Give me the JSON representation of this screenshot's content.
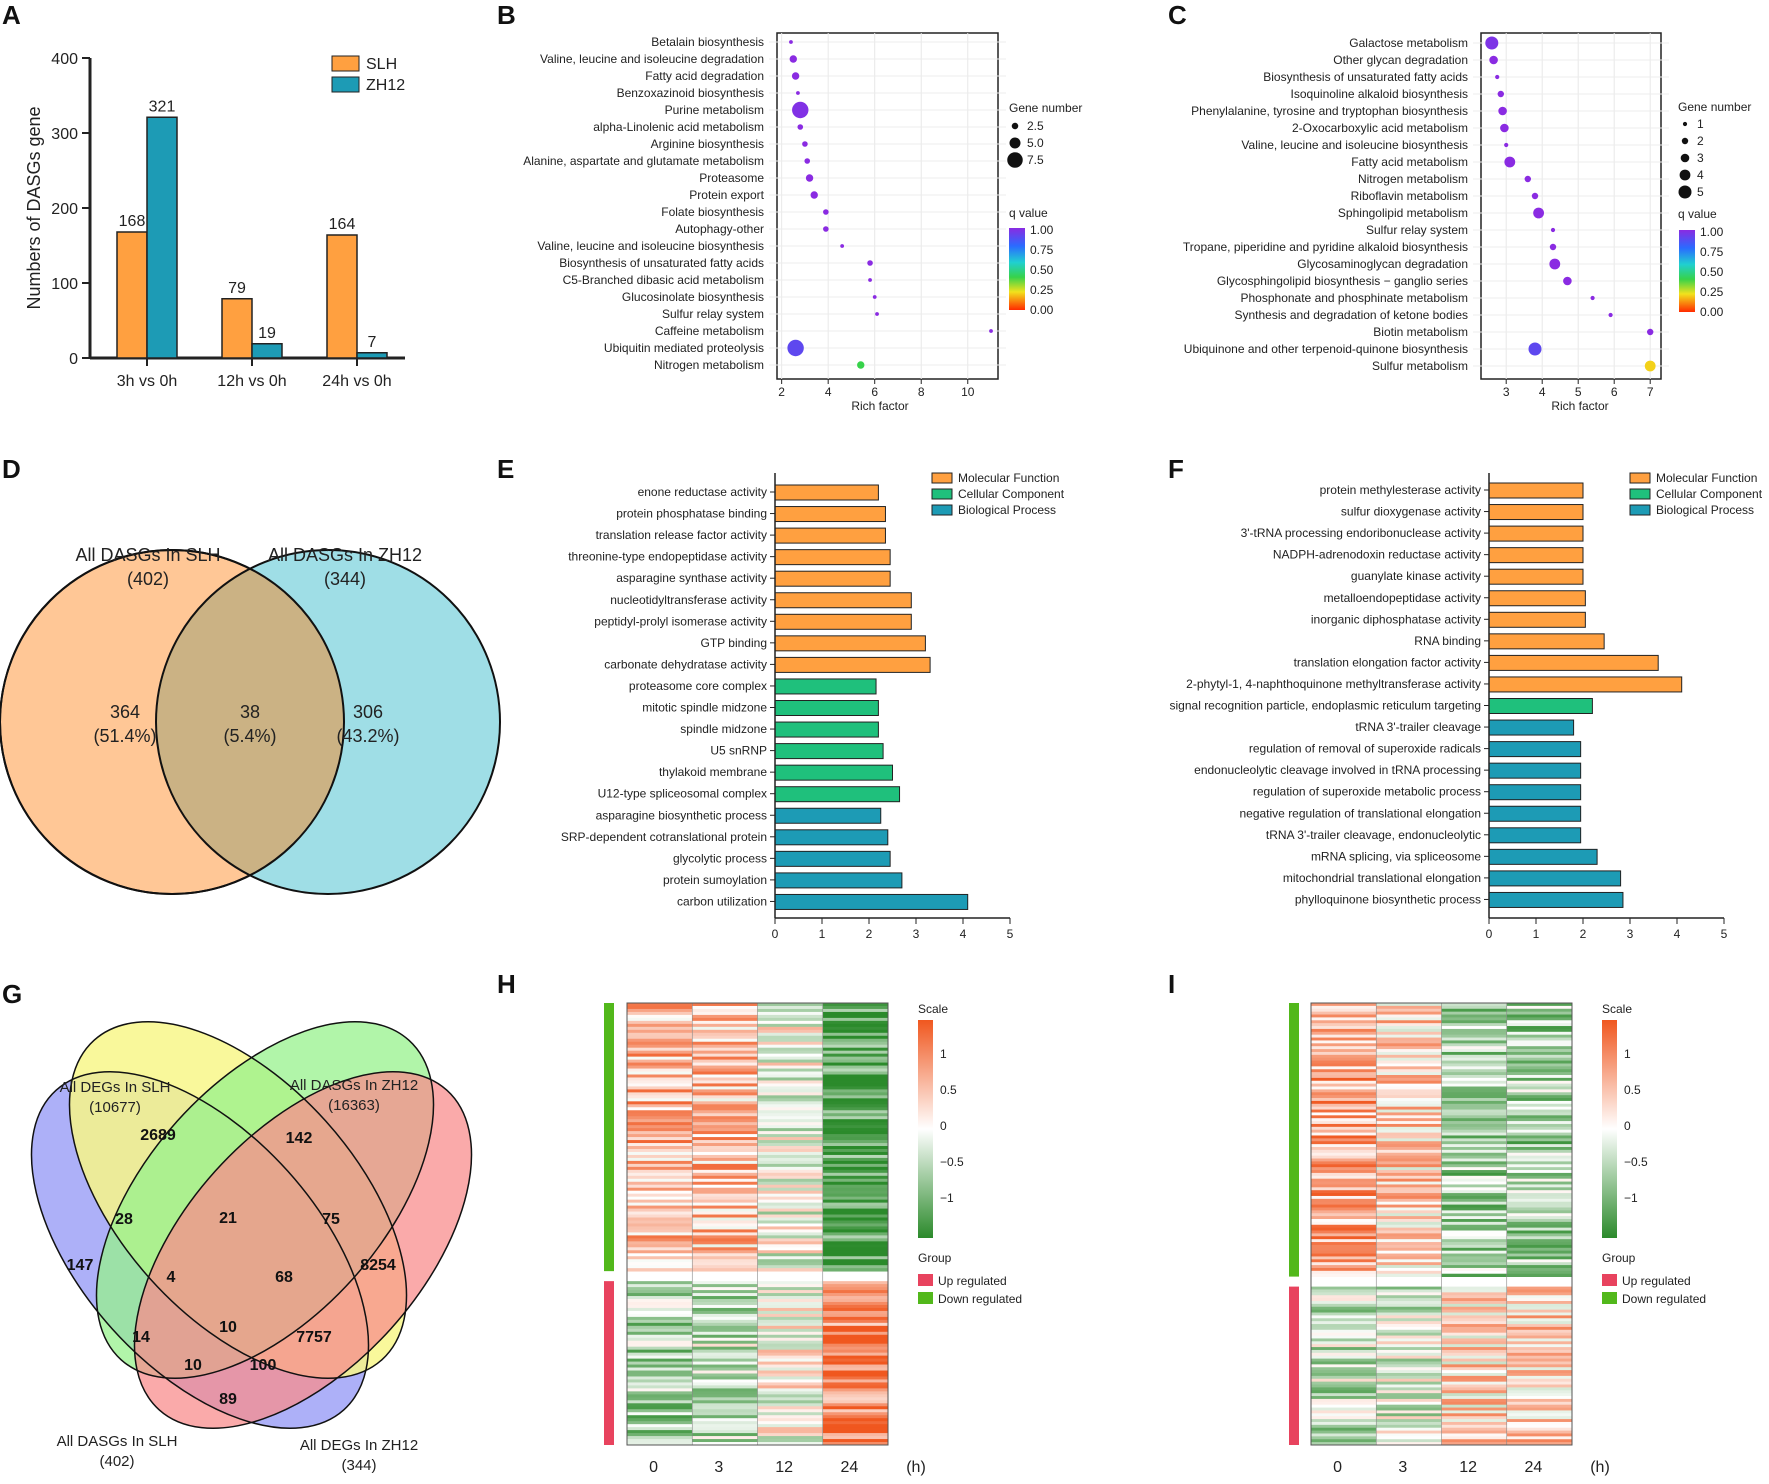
{
  "panels": {
    "A": "A",
    "B": "B",
    "C": "C",
    "D": "D",
    "E": "E",
    "F": "F",
    "G": "G",
    "H": "H",
    "I": "I"
  },
  "chart_data": [
    {
      "id": "A",
      "type": "bar",
      "ylabel": "Numbers of DASGs gene",
      "ylim": [
        0,
        400
      ],
      "yticks": [
        "0",
        "100",
        "200",
        "300",
        "400"
      ],
      "categories": [
        "3h vs 0h",
        "12h vs 0h",
        "24h vs 0h"
      ],
      "series": [
        {
          "name": "SLH",
          "values": [
            168,
            79,
            164
          ],
          "color": "#FFA040"
        },
        {
          "name": "ZH12",
          "values": [
            321,
            19,
            7
          ],
          "color": "#1D9BB5"
        }
      ],
      "data_labels": [
        [
          "168",
          "321"
        ],
        [
          "79",
          "19"
        ],
        [
          "164",
          "7"
        ]
      ]
    },
    {
      "id": "B",
      "type": "scatter",
      "xlabel": "Rich factor",
      "xlim": [
        1.8,
        11.3
      ],
      "xticks": [
        "2",
        "4",
        "6",
        "8",
        "10"
      ],
      "size_legend_title": "Gene number",
      "size_legend": [
        "2.5",
        "5.0",
        "7.5"
      ],
      "q_legend_title": "q value",
      "q_legend": [
        "1.00",
        "0.75",
        "0.50",
        "0.25",
        "0.00"
      ],
      "terms": [
        {
          "label": "Betalain biosynthesis",
          "rich": 2.4,
          "genes": 1,
          "q": 1.0
        },
        {
          "label": "Valine, leucine and isoleucine degradation",
          "rich": 2.5,
          "genes": 3,
          "q": 1.0
        },
        {
          "label": "Fatty acid degradation",
          "rich": 2.6,
          "genes": 3,
          "q": 1.0
        },
        {
          "label": "Benzoxazinoid biosynthesis",
          "rich": 2.7,
          "genes": 1,
          "q": 1.0
        },
        {
          "label": "Purine metabolism",
          "rich": 2.8,
          "genes": 8,
          "q": 0.98
        },
        {
          "label": "alpha-Linolenic acid metabolism",
          "rich": 2.8,
          "genes": 2,
          "q": 1.0
        },
        {
          "label": "Arginine biosynthesis",
          "rich": 3.0,
          "genes": 2,
          "q": 1.0
        },
        {
          "label": "Alanine, aspartate and glutamate metabolism",
          "rich": 3.1,
          "genes": 2,
          "q": 1.0
        },
        {
          "label": "Proteasome",
          "rich": 3.2,
          "genes": 3,
          "q": 1.0
        },
        {
          "label": "Protein export",
          "rich": 3.4,
          "genes": 3,
          "q": 1.0
        },
        {
          "label": "Folate biosynthesis",
          "rich": 3.9,
          "genes": 2,
          "q": 1.0
        },
        {
          "label": "Autophagy-other",
          "rich": 3.9,
          "genes": 2,
          "q": 1.0
        },
        {
          "label": "Valine, leucine and isoleucine biosynthesis",
          "rich": 4.6,
          "genes": 1,
          "q": 1.0
        },
        {
          "label": "Biosynthesis of unsaturated fatty acids",
          "rich": 5.8,
          "genes": 2,
          "q": 1.0
        },
        {
          "label": "C5-Branched dibasic acid metabolism",
          "rich": 5.8,
          "genes": 1,
          "q": 1.0
        },
        {
          "label": "Glucosinolate biosynthesis",
          "rich": 6.0,
          "genes": 1,
          "q": 1.0
        },
        {
          "label": "Sulfur relay system",
          "rich": 6.1,
          "genes": 1,
          "q": 1.0
        },
        {
          "label": "Caffeine metabolism",
          "rich": 11.0,
          "genes": 1,
          "q": 1.0
        },
        {
          "label": "Ubiquitin mediated proteolysis",
          "rich": 2.6,
          "genes": 8,
          "q": 0.9
        },
        {
          "label": "Nitrogen metabolism",
          "rich": 5.4,
          "genes": 3,
          "q": 0.4
        }
      ]
    },
    {
      "id": "C",
      "type": "scatter",
      "xlabel": "Rich factor",
      "xlim": [
        2.3,
        7.3
      ],
      "xticks": [
        "3",
        "4",
        "5",
        "6",
        "7"
      ],
      "size_legend_title": "Gene number",
      "size_legend": [
        "1",
        "2",
        "3",
        "4",
        "5"
      ],
      "q_legend_title": "q value",
      "q_legend": [
        "1.00",
        "0.75",
        "0.50",
        "0.25",
        "0.00"
      ],
      "terms": [
        {
          "label": "Galactose metabolism",
          "rich": 2.6,
          "genes": 5,
          "q": 0.97
        },
        {
          "label": "Other glycan degradation",
          "rich": 2.65,
          "genes": 3,
          "q": 1.0
        },
        {
          "label": "Biosynthesis of unsaturated fatty acids",
          "rich": 2.75,
          "genes": 1,
          "q": 1.0
        },
        {
          "label": "Isoquinoline alkaloid biosynthesis",
          "rich": 2.85,
          "genes": 2,
          "q": 1.0
        },
        {
          "label": "Phenylalanine, tyrosine and tryptophan biosynthesis",
          "rich": 2.9,
          "genes": 3,
          "q": 1.0
        },
        {
          "label": "2-Oxocarboxylic acid metabolism",
          "rich": 2.95,
          "genes": 3,
          "q": 1.0
        },
        {
          "label": "Valine, leucine and isoleucine biosynthesis",
          "rich": 3.0,
          "genes": 1,
          "q": 1.0
        },
        {
          "label": "Fatty acid metabolism",
          "rich": 3.1,
          "genes": 4,
          "q": 1.0
        },
        {
          "label": "Nitrogen metabolism",
          "rich": 3.6,
          "genes": 2,
          "q": 1.0
        },
        {
          "label": "Riboflavin metabolism",
          "rich": 3.8,
          "genes": 2,
          "q": 1.0
        },
        {
          "label": "Sphingolipid metabolism",
          "rich": 3.9,
          "genes": 4,
          "q": 1.0
        },
        {
          "label": "Sulfur relay system",
          "rich": 4.3,
          "genes": 1,
          "q": 1.0
        },
        {
          "label": "Tropane, piperidine and pyridine alkaloid biosynthesis",
          "rich": 4.3,
          "genes": 2,
          "q": 1.0
        },
        {
          "label": "Glycosaminoglycan degradation",
          "rich": 4.35,
          "genes": 4,
          "q": 1.0
        },
        {
          "label": "Glycosphingolipid biosynthesis − ganglio series",
          "rich": 4.7,
          "genes": 3,
          "q": 1.0
        },
        {
          "label": "Phosphonate and phosphinate metabolism",
          "rich": 5.4,
          "genes": 1,
          "q": 1.0
        },
        {
          "label": "Synthesis and degradation of ketone bodies",
          "rich": 5.9,
          "genes": 1,
          "q": 1.0
        },
        {
          "label": "Biotin metabolism",
          "rich": 7.0,
          "genes": 2,
          "q": 1.0
        },
        {
          "label": "Ubiquinone and other terpenoid-quinone biosynthesis",
          "rich": 3.8,
          "genes": 5,
          "q": 0.9
        },
        {
          "label": "Sulfur metabolism",
          "rich": 7.0,
          "genes": 4,
          "q": 0.2
        }
      ]
    },
    {
      "id": "E",
      "type": "bar",
      "orientation": "horizontal",
      "xlim": [
        0,
        5
      ],
      "xticks": [
        "0",
        "1",
        "2",
        "3",
        "4",
        "5"
      ],
      "legend": [
        {
          "name": "Molecular Function",
          "color": "#FFA040"
        },
        {
          "name": "Cellular Component",
          "color": "#1FC07C"
        },
        {
          "name": "Biological Process",
          "color": "#1D9BB5"
        }
      ],
      "bars": [
        {
          "label": "enone reductase activity",
          "value": 2.2,
          "group": 0
        },
        {
          "label": "protein phosphatase binding",
          "value": 2.35,
          "group": 0
        },
        {
          "label": "translation release factor activity",
          "value": 2.35,
          "group": 0
        },
        {
          "label": "threonine-type endopeptidase activity",
          "value": 2.45,
          "group": 0
        },
        {
          "label": "asparagine synthase activity",
          "value": 2.45,
          "group": 0
        },
        {
          "label": "nucleotidyltransferase activity",
          "value": 2.9,
          "group": 0
        },
        {
          "label": "peptidyl-prolyl isomerase activity",
          "value": 2.9,
          "group": 0
        },
        {
          "label": "GTP binding",
          "value": 3.2,
          "group": 0
        },
        {
          "label": "carbonate dehydratase activity",
          "value": 3.3,
          "group": 0
        },
        {
          "label": "proteasome core complex",
          "value": 2.15,
          "group": 1
        },
        {
          "label": "mitotic spindle midzone",
          "value": 2.2,
          "group": 1
        },
        {
          "label": "spindle midzone",
          "value": 2.2,
          "group": 1
        },
        {
          "label": "U5 snRNP",
          "value": 2.3,
          "group": 1
        },
        {
          "label": "thylakoid membrane",
          "value": 2.5,
          "group": 1
        },
        {
          "label": "U12-type spliceosomal complex",
          "value": 2.65,
          "group": 1
        },
        {
          "label": "asparagine biosynthetic process",
          "value": 2.25,
          "group": 2
        },
        {
          "label": "SRP-dependent cotranslational protein",
          "value": 2.4,
          "group": 2
        },
        {
          "label": "glycolytic process",
          "value": 2.45,
          "group": 2
        },
        {
          "label": "protein sumoylation",
          "value": 2.7,
          "group": 2
        },
        {
          "label": "carbon utilization",
          "value": 4.1,
          "group": 2
        }
      ]
    },
    {
      "id": "F",
      "type": "bar",
      "orientation": "horizontal",
      "xlim": [
        0,
        5
      ],
      "xticks": [
        "0",
        "1",
        "2",
        "3",
        "4",
        "5"
      ],
      "legend": [
        {
          "name": "Molecular Function",
          "color": "#FFA040"
        },
        {
          "name": "Cellular Component",
          "color": "#1FC07C"
        },
        {
          "name": "Biological Process",
          "color": "#1D9BB5"
        }
      ],
      "bars": [
        {
          "label": "protein methylesterase activity",
          "value": 2.0,
          "group": 0
        },
        {
          "label": "sulfur dioxygenase activity",
          "value": 2.0,
          "group": 0
        },
        {
          "label": "3'-tRNA processing endoribonuclease activity",
          "value": 2.0,
          "group": 0
        },
        {
          "label": "NADPH-adrenodoxin reductase activity",
          "value": 2.0,
          "group": 0
        },
        {
          "label": "guanylate kinase activity",
          "value": 2.0,
          "group": 0
        },
        {
          "label": "metalloendopeptidase activity",
          "value": 2.05,
          "group": 0
        },
        {
          "label": "inorganic diphosphatase activity",
          "value": 2.05,
          "group": 0
        },
        {
          "label": "RNA binding",
          "value": 2.45,
          "group": 0
        },
        {
          "label": "translation elongation factor activity",
          "value": 3.6,
          "group": 0
        },
        {
          "label": "2-phytyl-1, 4-naphthoquinone methyltransferase activity",
          "value": 4.1,
          "group": 0
        },
        {
          "label": "signal recognition particle, endoplasmic reticulum targeting",
          "value": 2.2,
          "group": 1
        },
        {
          "label": "tRNA 3'-trailer cleavage",
          "value": 1.8,
          "group": 2
        },
        {
          "label": "regulation of removal of superoxide radicals",
          "value": 1.95,
          "group": 2
        },
        {
          "label": "endonucleolytic cleavage involved in tRNA processing",
          "value": 1.95,
          "group": 2
        },
        {
          "label": "regulation of superoxide metabolic process",
          "value": 1.95,
          "group": 2
        },
        {
          "label": "negative regulation of translational elongation",
          "value": 1.95,
          "group": 2
        },
        {
          "label": "tRNA 3'-trailer cleavage, endonucleolytic",
          "value": 1.95,
          "group": 2
        },
        {
          "label": "mRNA splicing, via spliceosome",
          "value": 2.3,
          "group": 2
        },
        {
          "label": "mitochondrial translational elongation",
          "value": 2.8,
          "group": 2
        },
        {
          "label": "phylloquinone biosynthetic process",
          "value": 2.85,
          "group": 2
        }
      ]
    },
    {
      "id": "H",
      "type": "heatmap",
      "columns": [
        "0",
        "3",
        "12",
        "24"
      ],
      "unit": "(h)",
      "scale_title": "Scale",
      "scale_ticks": [
        "1",
        "0.5",
        "0",
        "−0.5",
        "−1"
      ],
      "group_title": "Group",
      "groups": [
        {
          "name": "Up regulated",
          "color": "#E8435E"
        },
        {
          "name": "Down regulated",
          "color": "#52B81B"
        }
      ],
      "blocks": [
        {
          "group": "Down regulated",
          "rows": 90,
          "means": [
            0.55,
            0.5,
            -0.05,
            -1.05
          ]
        },
        {
          "group": "Up regulated",
          "rows": 55,
          "means": [
            -0.5,
            -0.35,
            0.0,
            0.9
          ]
        }
      ]
    },
    {
      "id": "I",
      "type": "heatmap",
      "columns": [
        "0",
        "3",
        "12",
        "24"
      ],
      "unit": "(h)",
      "scale_title": "Scale",
      "scale_ticks": [
        "1",
        "0.5",
        "0",
        "−0.5",
        "−1"
      ],
      "group_title": "Group",
      "groups": [
        {
          "name": "Up regulated",
          "color": "#E8435E"
        },
        {
          "name": "Down regulated",
          "color": "#52B81B"
        }
      ],
      "blocks": [
        {
          "group": "Down regulated",
          "rows": 95,
          "means": [
            0.65,
            0.35,
            -0.55,
            -0.55
          ]
        },
        {
          "group": "Up regulated",
          "rows": 55,
          "means": [
            -0.35,
            -0.2,
            0.3,
            0.35
          ]
        }
      ]
    }
  ],
  "venn_d": {
    "left_title": "All DASGs In SLH",
    "left_count": "(402)",
    "right_title": "All DASGs In ZH12",
    "right_count": "(344)",
    "left_only": "364",
    "left_only_pct": "(51.4%)",
    "shared": "38",
    "shared_pct": "(5.4%)",
    "right_only": "306",
    "right_only_pct": "(43.2%)"
  },
  "venn_g": {
    "labels": {
      "degs_slh": "All DEGs In SLH",
      "degs_slh_count": "(10677)",
      "dasgs_zh12": "All DASGs In ZH12",
      "dasgs_zh12_count": "(16363)",
      "dasgs_slh": "All DASGs In SLH",
      "dasgs_slh_count": "(402)",
      "degs_zh12": "All DEGs In ZH12",
      "degs_zh12_count": "(344)"
    },
    "counts": [
      "147",
      "2689",
      "142",
      "8254",
      "28",
      "21",
      "75",
      "4",
      "68",
      "10",
      "14",
      "7757",
      "10",
      "100",
      "89"
    ]
  }
}
